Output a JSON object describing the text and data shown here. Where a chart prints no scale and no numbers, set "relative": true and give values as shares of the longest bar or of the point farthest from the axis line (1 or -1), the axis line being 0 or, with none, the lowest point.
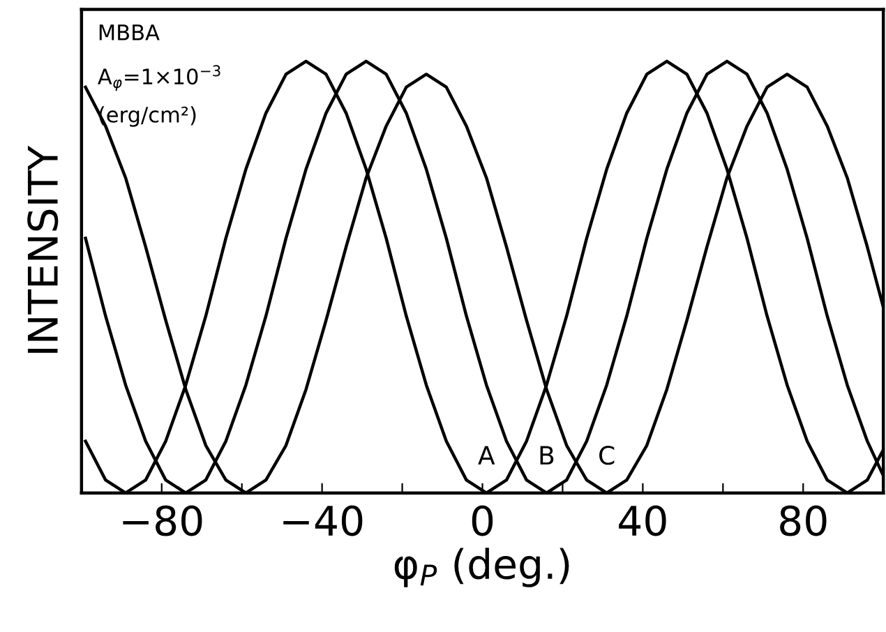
{
  "chart_data": {
    "type": "line",
    "relative": true,
    "xlabel": "φ$_{P}$ (deg.)",
    "ylabel": "INTENSITY",
    "annotations": [
      "MBBA",
      "A$_{φ}$=1×10$^{−3}$",
      "(erg/cm²)",
      {
        "text": "A",
        "x": 1,
        "y": 0
      },
      {
        "text": "B",
        "x": 16,
        "y": 0
      },
      {
        "text": "C",
        "x": 31,
        "y": 0
      }
    ],
    "xlim": [
      -100,
      100
    ],
    "xticks": [
      {
        "value": -100,
        "label": null
      },
      -80,
      {
        "value": -60,
        "label": null
      },
      -40,
      {
        "value": -20,
        "label": null
      },
      0,
      {
        "value": 20,
        "label": null
      },
      40,
      {
        "value": 60,
        "label": null
      },
      80,
      {
        "value": 100,
        "label": null
      }
    ],
    "tick_labels": "x",
    "grid": false,
    "legend": false,
    "marker": "none",
    "line_style": "solid",
    "series": [
      {
        "color": "#000000",
        "x": [
          -99,
          -94,
          -89,
          -84,
          -79,
          -74,
          -69,
          -64,
          -59,
          -54,
          -49,
          -44,
          -39,
          -34,
          -29,
          -24,
          -19,
          -14,
          -9,
          -4,
          1,
          6,
          11,
          16,
          21,
          26,
          31,
          36,
          41,
          46,
          51,
          56,
          61,
          66,
          71,
          76,
          81,
          86,
          91,
          96,
          100
        ],
        "values": [
          0.12,
          0.03,
          0,
          0.03,
          0.12,
          0.25,
          0.41,
          0.59,
          0.75,
          0.88,
          0.97,
          1,
          0.97,
          0.88,
          0.75,
          0.59,
          0.41,
          0.25,
          0.12,
          0.03,
          0,
          0.03,
          0.12,
          0.25,
          0.41,
          0.59,
          0.75,
          0.88,
          0.97,
          1,
          0.97,
          0.88,
          0.75,
          0.59,
          0.41,
          0.25,
          0.12,
          0.03,
          0,
          0.03,
          0.1
        ]
      },
      {
        "color": "#000000",
        "x": [
          -99,
          -94,
          -89,
          -84,
          -79,
          -74,
          -69,
          -64,
          -59,
          -54,
          -49,
          -44,
          -39,
          -34,
          -29,
          -24,
          -19,
          -14,
          -9,
          -4,
          1,
          6,
          11,
          16,
          21,
          26,
          31,
          36,
          41,
          46,
          51,
          56,
          61,
          66,
          71,
          76,
          81,
          86,
          91,
          96,
          100
        ],
        "values": [
          0.59,
          0.41,
          0.25,
          0.12,
          0.03,
          0,
          0.03,
          0.12,
          0.25,
          0.41,
          0.59,
          0.75,
          0.88,
          0.97,
          1,
          0.97,
          0.88,
          0.75,
          0.59,
          0.41,
          0.25,
          0.12,
          0.03,
          0,
          0.03,
          0.12,
          0.25,
          0.41,
          0.59,
          0.75,
          0.88,
          0.97,
          1,
          0.97,
          0.88,
          0.75,
          0.59,
          0.41,
          0.25,
          0.12,
          0.04
        ]
      },
      {
        "color": "#000000",
        "x": [
          -99,
          -94,
          -89,
          -84,
          -79,
          -74,
          -69,
          -64,
          -59,
          -54,
          -49,
          -44,
          -39,
          -34,
          -29,
          -24,
          -19,
          -14,
          -9,
          -4,
          1,
          6,
          11,
          16,
          21,
          26,
          31,
          36,
          41,
          46,
          51,
          56,
          61,
          66,
          71,
          76,
          81,
          86,
          91,
          96,
          100
        ],
        "values": [
          0.94,
          0.85,
          0.73,
          0.57,
          0.4,
          0.24,
          0.11,
          0.03,
          0,
          0.03,
          0.11,
          0.24,
          0.4,
          0.57,
          0.73,
          0.85,
          0.94,
          0.97,
          0.94,
          0.85,
          0.73,
          0.57,
          0.4,
          0.24,
          0.11,
          0.03,
          0,
          0.03,
          0.11,
          0.24,
          0.4,
          0.57,
          0.73,
          0.85,
          0.94,
          0.97,
          0.94,
          0.85,
          0.73,
          0.57,
          0.43
        ]
      }
    ]
  }
}
